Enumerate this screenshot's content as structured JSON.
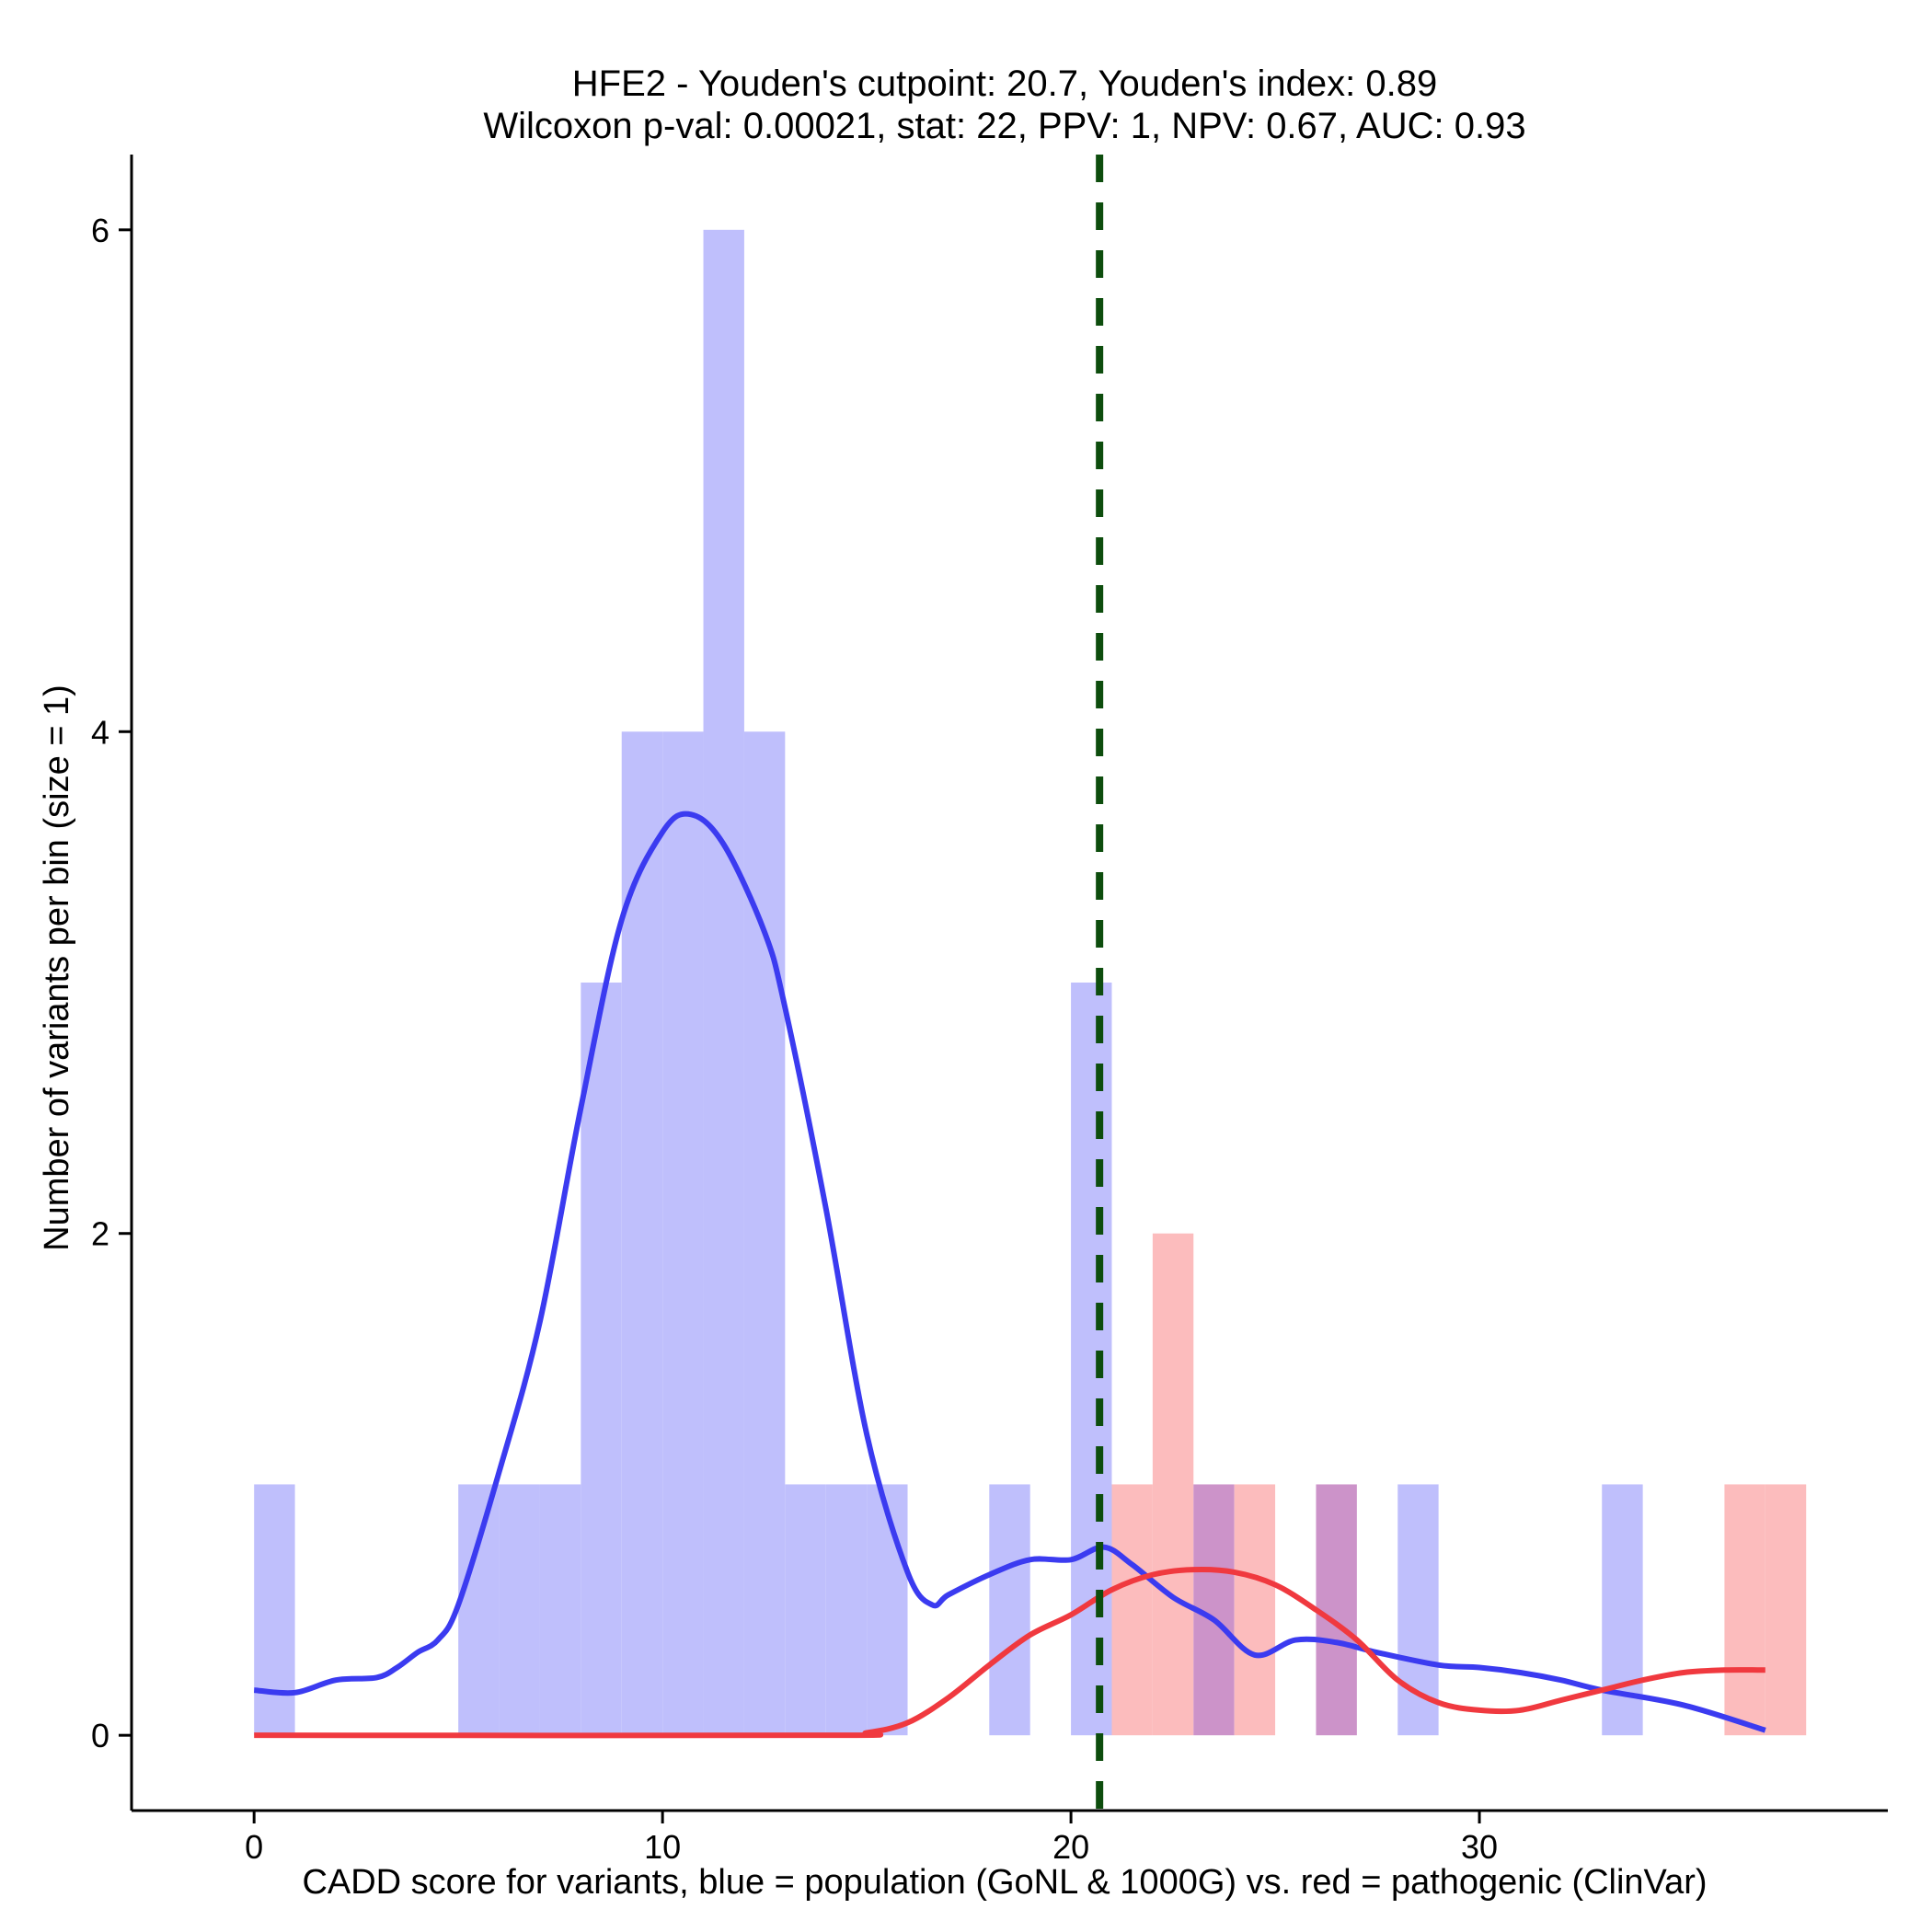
{
  "chart_data": {
    "type": "bar",
    "title_line1": "HFE2 - Youden's cutpoint: 20.7, Youden's index: 0.89",
    "title_line2": "Wilcoxon p-val: 0.00021, stat: 22, PPV: 1, NPV: 0.67, AUC: 0.93",
    "xlabel": "CADD score for variants, blue = population (GoNL & 1000G) vs. red = pathogenic (ClinVar)",
    "ylabel": "Number of variants per bin (size = 1)",
    "xlim": [
      -3,
      40
    ],
    "ylim": [
      -0.3,
      6.3
    ],
    "x_ticks": [
      0,
      10,
      20,
      30
    ],
    "y_ticks": [
      0,
      2,
      4,
      6
    ],
    "bin_width": 1,
    "cutpoint": 20.7,
    "colors": {
      "population_bar": "#bfbffc",
      "pathogenic_bar": "#fcbcbd",
      "overlap_bar": "#cc93c9",
      "population_line": "#3b3bf0",
      "pathogenic_line": "#f0393f",
      "cutpoint_line": "#0d4d0d"
    },
    "series": [
      {
        "name": "population (GoNL & 1000G)",
        "bins": [
          {
            "x": 0,
            "count": 1
          },
          {
            "x": 5,
            "count": 1
          },
          {
            "x": 6,
            "count": 1
          },
          {
            "x": 7,
            "count": 1
          },
          {
            "x": 8,
            "count": 3
          },
          {
            "x": 9,
            "count": 4
          },
          {
            "x": 10,
            "count": 4
          },
          {
            "x": 11,
            "count": 6
          },
          {
            "x": 12,
            "count": 4
          },
          {
            "x": 13,
            "count": 1
          },
          {
            "x": 14,
            "count": 1
          },
          {
            "x": 15,
            "count": 1
          },
          {
            "x": 18,
            "count": 1
          },
          {
            "x": 20,
            "count": 3
          },
          {
            "x": 23,
            "count": 1
          },
          {
            "x": 26,
            "count": 1
          },
          {
            "x": 28,
            "count": 1
          },
          {
            "x": 33,
            "count": 1
          }
        ],
        "density": [
          [
            0,
            0.18
          ],
          [
            1,
            0.17
          ],
          [
            2,
            0.22
          ],
          [
            3,
            0.23
          ],
          [
            3.5,
            0.27
          ],
          [
            4,
            0.33
          ],
          [
            4.5,
            0.38
          ],
          [
            5,
            0.52
          ],
          [
            6,
            1.05
          ],
          [
            7,
            1.65
          ],
          [
            8,
            2.5
          ],
          [
            9,
            3.25
          ],
          [
            10,
            3.6
          ],
          [
            10.7,
            3.67
          ],
          [
            11.5,
            3.55
          ],
          [
            12.5,
            3.2
          ],
          [
            13,
            2.9
          ],
          [
            14,
            2.1
          ],
          [
            15,
            1.2
          ],
          [
            16,
            0.65
          ],
          [
            16.6,
            0.52
          ],
          [
            17,
            0.56
          ],
          [
            18,
            0.64
          ],
          [
            19,
            0.7
          ],
          [
            20,
            0.7
          ],
          [
            20.8,
            0.75
          ],
          [
            21.5,
            0.68
          ],
          [
            22.5,
            0.55
          ],
          [
            23.5,
            0.46
          ],
          [
            24.5,
            0.32
          ],
          [
            25.5,
            0.38
          ],
          [
            26.5,
            0.37
          ],
          [
            27.5,
            0.33
          ],
          [
            29,
            0.28
          ],
          [
            30,
            0.27
          ],
          [
            31,
            0.25
          ],
          [
            32,
            0.22
          ],
          [
            33,
            0.18
          ],
          [
            35,
            0.12
          ],
          [
            37,
            0.02
          ]
        ]
      },
      {
        "name": "pathogenic (ClinVar)",
        "bins": [
          {
            "x": 21,
            "count": 1
          },
          {
            "x": 22,
            "count": 2
          },
          {
            "x": 23,
            "count": 1
          },
          {
            "x": 24,
            "count": 1
          },
          {
            "x": 26,
            "count": 1
          },
          {
            "x": 36,
            "count": 1
          },
          {
            "x": 37,
            "count": 1
          }
        ],
        "density": [
          [
            0,
            0
          ],
          [
            14,
            0
          ],
          [
            15,
            0.01
          ],
          [
            16,
            0.05
          ],
          [
            17,
            0.15
          ],
          [
            18,
            0.28
          ],
          [
            19,
            0.4
          ],
          [
            20,
            0.48
          ],
          [
            21,
            0.58
          ],
          [
            22,
            0.64
          ],
          [
            23,
            0.66
          ],
          [
            24,
            0.65
          ],
          [
            25,
            0.6
          ],
          [
            26,
            0.5
          ],
          [
            27,
            0.38
          ],
          [
            28,
            0.22
          ],
          [
            29,
            0.13
          ],
          [
            30,
            0.1
          ],
          [
            31,
            0.1
          ],
          [
            32,
            0.14
          ],
          [
            33,
            0.18
          ],
          [
            34,
            0.22
          ],
          [
            35,
            0.25
          ],
          [
            36,
            0.26
          ],
          [
            37,
            0.26
          ]
        ]
      }
    ]
  }
}
